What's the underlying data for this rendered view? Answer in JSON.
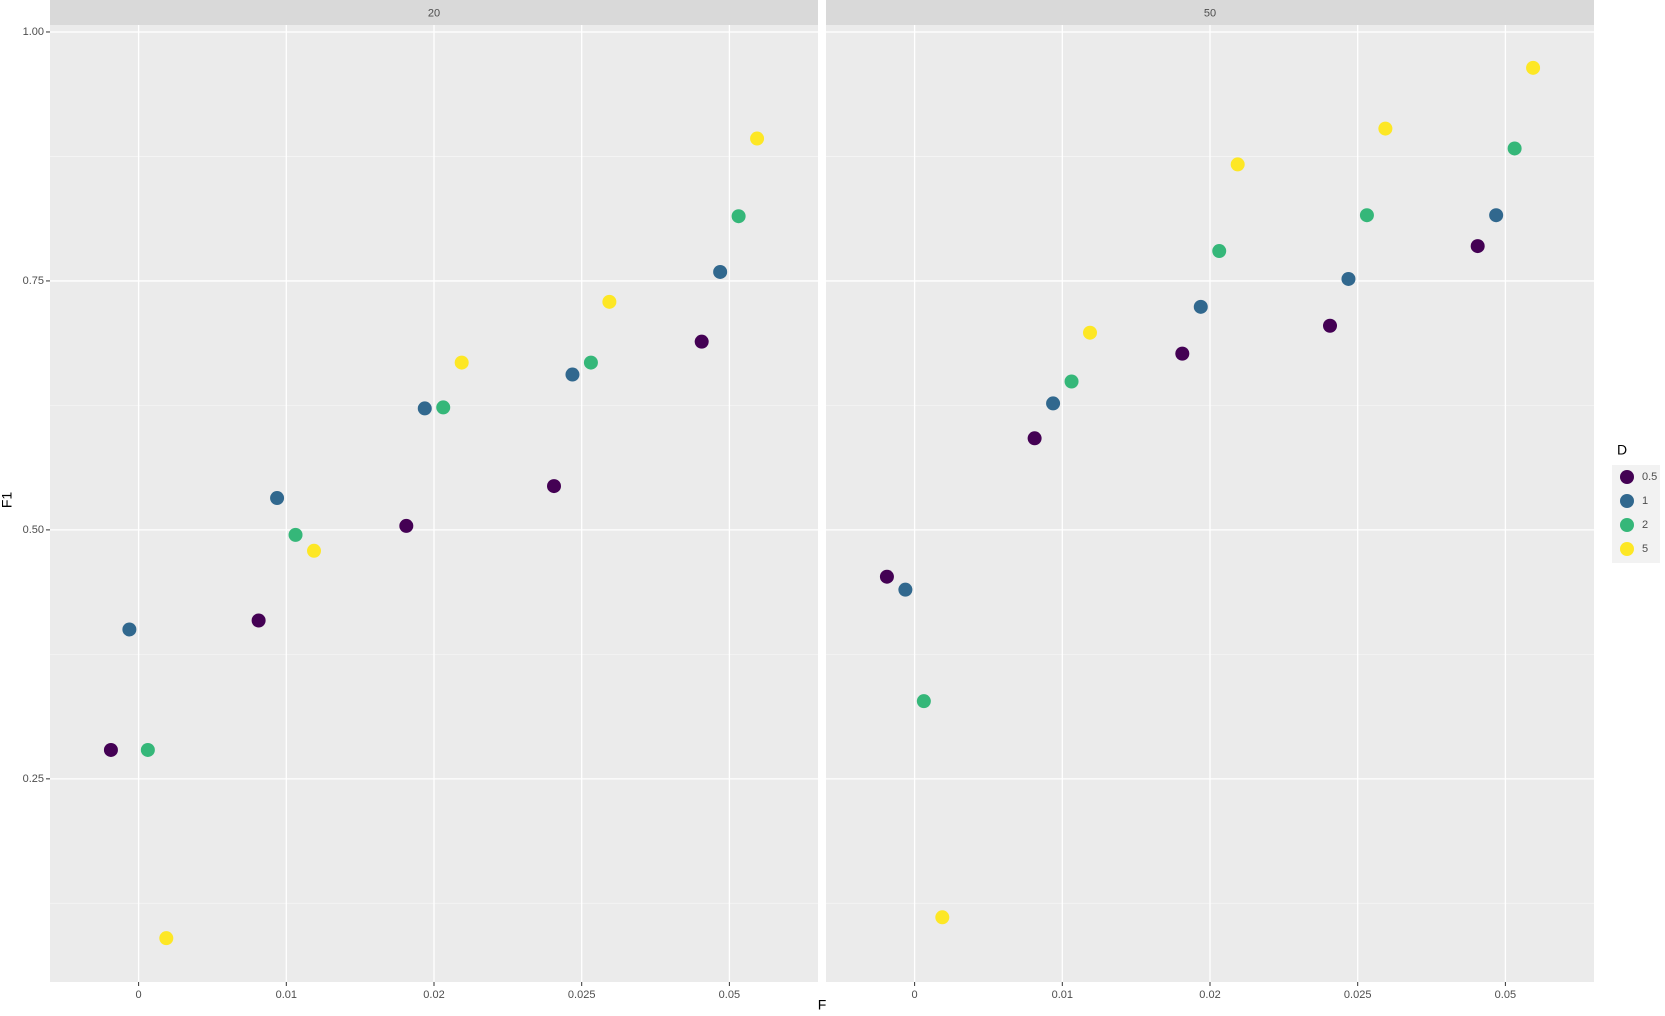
{
  "chart_data": [
    {
      "type": "scatter",
      "facet": "20",
      "x_label": "F",
      "y_label": "F1",
      "legend_title": "D",
      "categories": [
        "0",
        "0.01",
        "0.02",
        "0.025",
        "0.05"
      ],
      "ylim": [
        0.046,
        1.007
      ],
      "yticks": [
        0.25,
        {
          "value": 0.5,
          "label": "0.50"
        },
        0.75,
        {
          "value": 1,
          "label": "1.00"
        }
      ],
      "grid": true,
      "series": [
        {
          "name": "0.5",
          "color": "#440154",
          "values": [
            0.279,
            0.409,
            0.504,
            0.544,
            0.689
          ]
        },
        {
          "name": "1",
          "color": "#31688e",
          "values": [
            0.4,
            0.532,
            0.622,
            0.656,
            0.759
          ]
        },
        {
          "name": "2",
          "color": "#35b779",
          "values": [
            0.279,
            0.495,
            0.623,
            0.668,
            0.815
          ]
        },
        {
          "name": "5",
          "color": "#fde725",
          "values": [
            0.09,
            0.479,
            0.668,
            0.729,
            0.893
          ]
        }
      ]
    },
    {
      "type": "scatter",
      "facet": "50",
      "categories": [
        "0",
        "0.01",
        "0.02",
        "0.025",
        "0.05"
      ],
      "ylim": [
        0.046,
        1.007
      ],
      "yticks": [
        0.25,
        {
          "value": 0.5,
          "label": "0.50"
        },
        0.75,
        {
          "value": 1,
          "label": "1.00"
        }
      ],
      "grid": true,
      "series": [
        {
          "color": "#440154",
          "values": [
            0.453,
            0.592,
            0.677,
            0.705,
            0.785
          ]
        },
        {
          "color": "#31688e",
          "values": [
            0.44,
            0.627,
            0.724,
            0.752,
            0.816
          ]
        },
        {
          "color": "#35b779",
          "values": [
            0.328,
            0.649,
            0.78,
            0.816,
            0.883
          ]
        },
        {
          "color": "#fde725",
          "values": [
            0.111,
            0.698,
            0.867,
            0.903,
            0.964
          ]
        }
      ]
    }
  ]
}
